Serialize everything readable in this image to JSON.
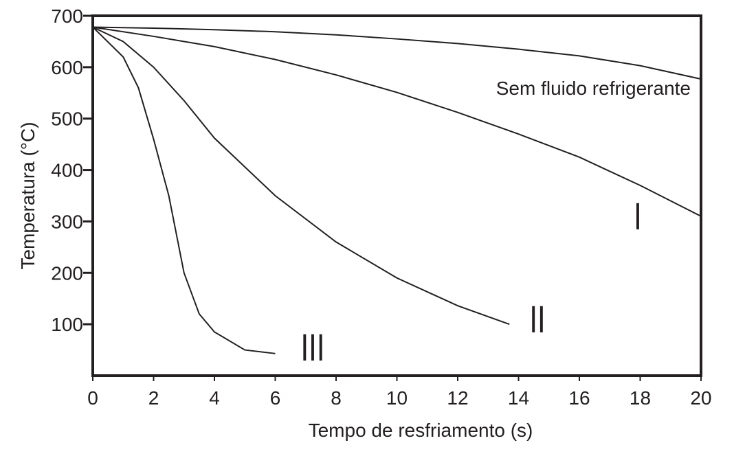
{
  "chart_data": {
    "type": "line",
    "x_label": "Tempo de resfriamento (s)",
    "y_label": "Temperatura (°C)",
    "xlim": [
      0,
      20
    ],
    "xticks": [
      0,
      2,
      4,
      6,
      8,
      10,
      12,
      14,
      16,
      18,
      20
    ],
    "ylim": [
      0,
      700
    ],
    "yticks": [
      100,
      200,
      300,
      400,
      500,
      600,
      700
    ],
    "series": [
      {
        "name": "Sem fluido refrigerante",
        "color": "#231f20",
        "x": [
          0,
          2,
          4,
          6,
          8,
          10,
          12,
          14,
          16,
          18,
          20
        ],
        "values": [
          678,
          676,
          673,
          669,
          663,
          655,
          646,
          635,
          622,
          603,
          577
        ]
      },
      {
        "name": "I",
        "color": "#231f20",
        "x": [
          0,
          2,
          4,
          6,
          8,
          10,
          12,
          14,
          16,
          18,
          20
        ],
        "values": [
          678,
          660,
          640,
          615,
          585,
          551,
          512,
          470,
          425,
          370,
          310
        ]
      },
      {
        "name": "II",
        "color": "#231f20",
        "x": [
          0,
          1,
          2,
          3,
          4,
          6,
          8,
          10,
          12,
          13.7
        ],
        "values": [
          678,
          650,
          600,
          535,
          462,
          350,
          260,
          190,
          136,
          100
        ]
      },
      {
        "name": "III",
        "color": "#231f20",
        "x": [
          0,
          1,
          1.5,
          2,
          2.5,
          2.7,
          3,
          3.5,
          4,
          5,
          6
        ],
        "values": [
          678,
          620,
          560,
          460,
          350,
          290,
          200,
          120,
          85,
          50,
          43
        ]
      }
    ]
  }
}
